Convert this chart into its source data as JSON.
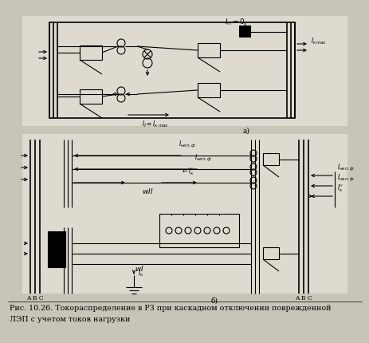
{
  "fig_bg": "#c8c4b8",
  "diagram_bg": "#dedad0",
  "caption_line1": "Рис. 10.26. Токораспределение в РЗ при каскадном отключении поврежденной",
  "caption_line2": "ЛЭП с учетом токов нагрузки",
  "label_a": "а)",
  "label_b": "б)",
  "text_IIeq0": "$I_{\\Pi}=0$",
  "text_Ikmax": "$I_{к\\,max}$",
  "text_If_Ikmax": "$I_f = I_{к\\,max}$",
  "text_Inepf1": "$I_{неп.ф}$",
  "text_Inepf2": "$I_{неп.ф}$",
  "text_Ik_prime": "$\\leftarrow I_{к}'$",
  "text_Inepf_r1": "$I_{неп.ф}$",
  "text_Inepf_r2": "$I_{неп.ф}$",
  "text_Ik_dbl": "$I_{к}''$",
  "text_WI": "$wI$",
  "text_WII": "$wII$",
  "text_ABC_left": "A B C",
  "text_ABC_right": "A B C",
  "text_Ik_bottom": "$I_{к}$"
}
